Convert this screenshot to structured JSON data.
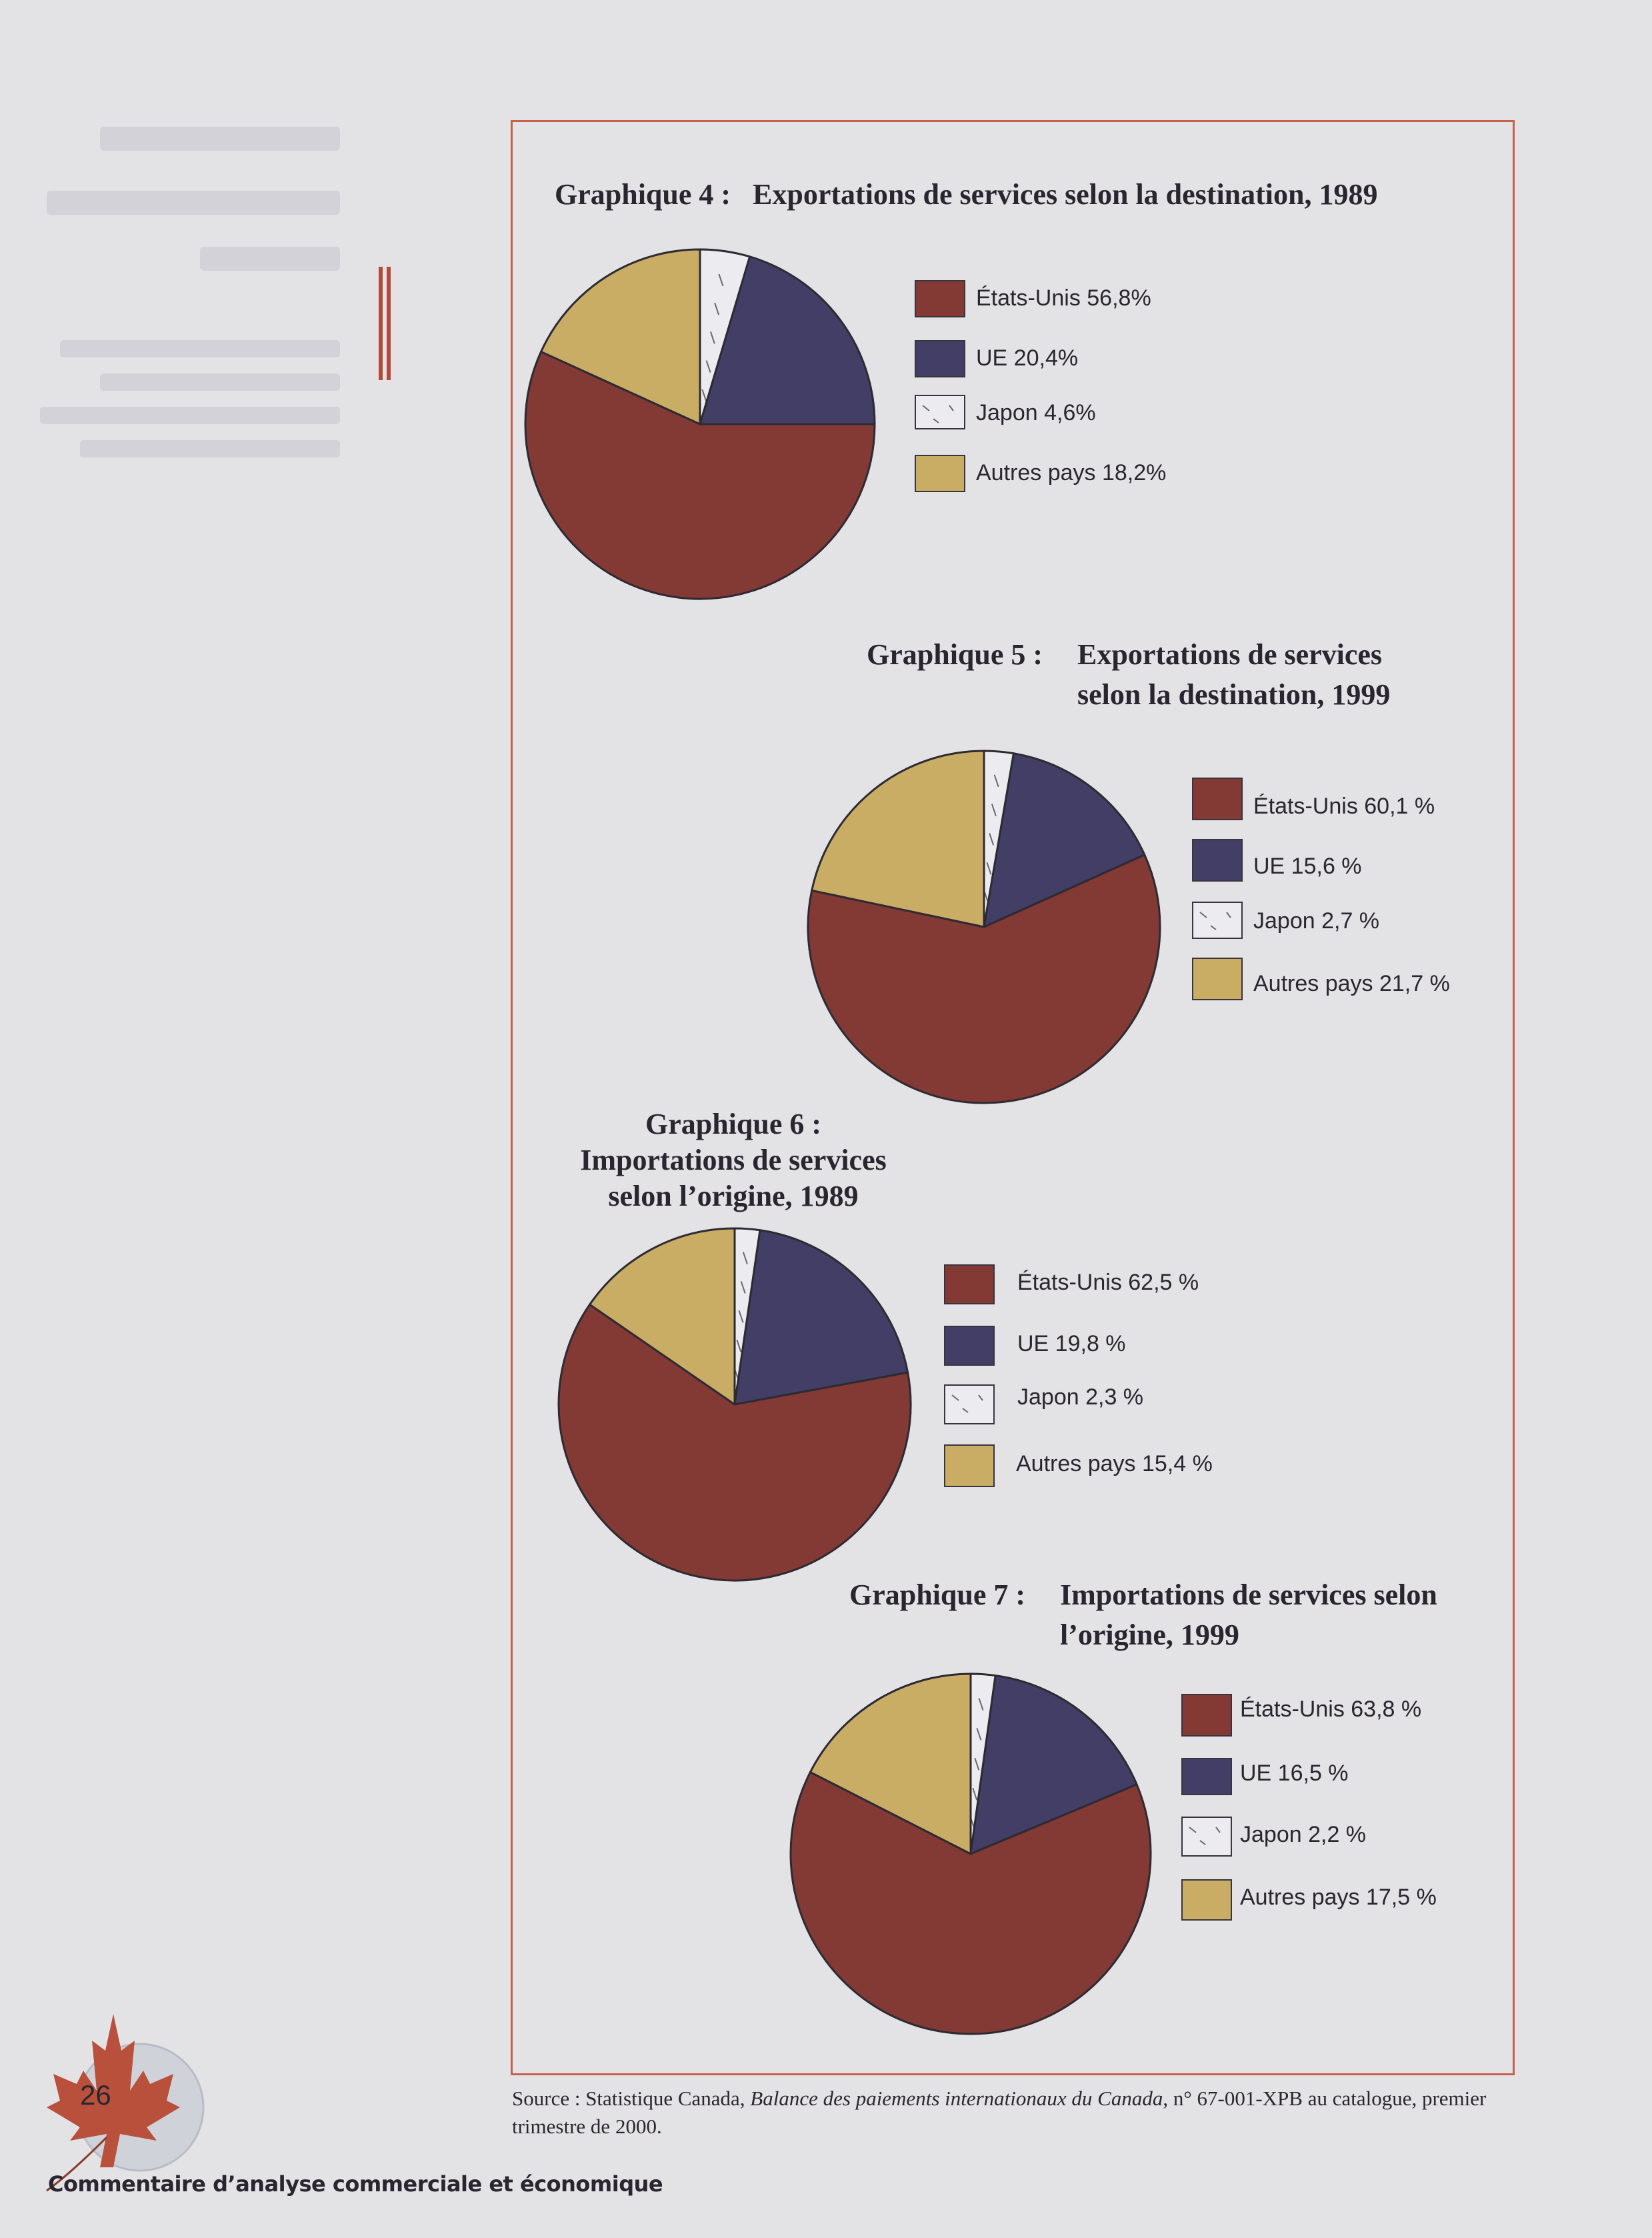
{
  "colors": {
    "etats_unis": "#833934",
    "ue": "#433e65",
    "japon": "#ecebef",
    "autres": "#c9ad64",
    "frame": "#c5634d"
  },
  "charts": [
    {
      "title_prefix": "Graphique 4 :",
      "title_lines": [
        "Exportations de services selon la destination, 1989"
      ],
      "legend": [
        "États-Unis 56,8%",
        "UE 20,4%",
        "Japon 4,6%",
        "Autres pays 18,2%"
      ]
    },
    {
      "title_prefix": "Graphique 5 :",
      "title_lines": [
        "Exportations de services",
        "selon la destination, 1999"
      ],
      "legend": [
        "États-Unis 60,1 %",
        "UE 15,6 %",
        "Japon 2,7 %",
        "Autres pays 21,7 %"
      ]
    },
    {
      "title_prefix": "Graphique 6 :",
      "title_lines": [
        "Importations de services",
        "selon l’origine, 1989"
      ],
      "legend": [
        "États-Unis 62,5 %",
        "UE 19,8 %",
        "Japon 2,3 %",
        "Autres pays 15,4 %"
      ]
    },
    {
      "title_prefix": "Graphique 7 :",
      "title_lines": [
        "Importations de services selon",
        "l’origine, 1999"
      ],
      "legend": [
        "États-Unis 63,8 %",
        "UE 16,5 %",
        "Japon 2,2 %",
        "Autres pays 17,5 %"
      ]
    }
  ],
  "chart_data": [
    {
      "type": "pie",
      "title": "Graphique 4 : Exportations de services selon la destination, 1989",
      "categories": [
        "États-Unis",
        "UE",
        "Japon",
        "Autres pays"
      ],
      "values": [
        56.8,
        20.4,
        4.6,
        18.2
      ]
    },
    {
      "type": "pie",
      "title": "Graphique 5 : Exportations de services selon la destination, 1999",
      "categories": [
        "États-Unis",
        "UE",
        "Japon",
        "Autres pays"
      ],
      "values": [
        60.1,
        15.6,
        2.7,
        21.7
      ]
    },
    {
      "type": "pie",
      "title": "Graphique 6 : Importations de services selon l’origine, 1989",
      "categories": [
        "États-Unis",
        "UE",
        "Japon",
        "Autres pays"
      ],
      "values": [
        62.5,
        19.8,
        2.3,
        15.4
      ]
    },
    {
      "type": "pie",
      "title": "Graphique 7 : Importations de services selon l’origine, 1999",
      "categories": [
        "États-Unis",
        "UE",
        "Japon",
        "Autres pays"
      ],
      "values": [
        63.8,
        16.5,
        2.2,
        17.5
      ]
    }
  ],
  "source": {
    "prefix": "Source : Statistique Canada, ",
    "publication": "Balance des paiements internationaux du Canada",
    "suffix": ", n° 67-001-XPB au catalogue, premier trimestre de 2000."
  },
  "page_number": "26",
  "footer": "Commentaire d’analyse commerciale et économique"
}
